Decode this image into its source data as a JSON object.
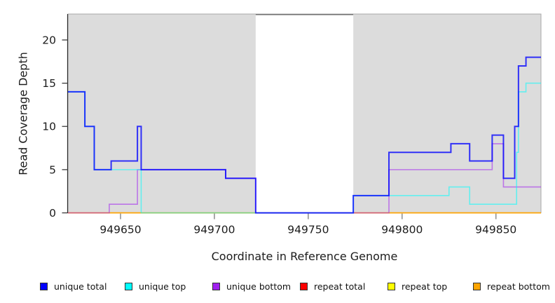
{
  "chart_data": {
    "type": "line",
    "subtype": "step-coverage",
    "title": "",
    "xlabel": "Coordinate in Reference Genome",
    "ylabel": "Read Coverage Depth",
    "x_range": [
      949622,
      949874
    ],
    "y_range": [
      0,
      23
    ],
    "x_ticks": [
      949650,
      949700,
      949750,
      949800,
      949850
    ],
    "y_ticks": [
      0,
      5,
      10,
      15,
      20
    ],
    "grid": "off",
    "plot_background": "#dcdcdc",
    "plot_border_color": "#a9a9a9",
    "axis_line_color": "#2b2b2b",
    "tick_color_x": "#8c8c8c",
    "tick_color_y": "#3c3c3c",
    "mask_region": {
      "x0": 949722,
      "x1": 949774,
      "fill": "#ffffff",
      "top_border": "#6f6f6f"
    },
    "series": [
      {
        "name": "repeat total",
        "color": "#FF0000",
        "opacity": 1,
        "width": 1.2,
        "points": [
          [
            949622,
            0
          ],
          [
            949874,
            0
          ]
        ]
      },
      {
        "name": "repeat top",
        "color": "#FFFF00",
        "opacity": 1,
        "width": 1.2,
        "points": [
          [
            949622,
            0
          ],
          [
            949874,
            0
          ]
        ]
      },
      {
        "name": "repeat bottom",
        "color": "#FFA500",
        "opacity": 1,
        "width": 1.6,
        "points": [
          [
            949622,
            0
          ],
          [
            949874,
            0
          ]
        ]
      },
      {
        "name": "unique bottom",
        "color": "#A020F0",
        "opacity": 0.55,
        "width": 1.6,
        "points": [
          [
            949622,
            0
          ],
          [
            949644,
            1
          ],
          [
            949659,
            5
          ],
          [
            949706,
            4
          ],
          [
            949722,
            0
          ],
          [
            949793,
            5
          ],
          [
            949848,
            8
          ],
          [
            949854,
            3
          ],
          [
            949874,
            3
          ]
        ]
      },
      {
        "name": "unique top",
        "color": "#00FFFF",
        "opacity": 0.55,
        "width": 1.6,
        "points": [
          [
            949622,
            14
          ],
          [
            949631,
            10
          ],
          [
            949636,
            5
          ],
          [
            949661,
            0
          ],
          [
            949774,
            2
          ],
          [
            949825,
            3
          ],
          [
            949836,
            1
          ],
          [
            949861,
            7
          ],
          [
            949862,
            14
          ],
          [
            949866,
            15
          ],
          [
            949874,
            15
          ]
        ]
      },
      {
        "name": "unique total",
        "color": "#0000FF",
        "opacity": 0.78,
        "width": 2,
        "points": [
          [
            949622,
            14
          ],
          [
            949631,
            10
          ],
          [
            949636,
            5
          ],
          [
            949645,
            6
          ],
          [
            949659,
            10
          ],
          [
            949661,
            5
          ],
          [
            949706,
            4
          ],
          [
            949722,
            0
          ],
          [
            949774,
            2
          ],
          [
            949793,
            7
          ],
          [
            949826,
            8
          ],
          [
            949836,
            6
          ],
          [
            949848,
            9
          ],
          [
            949854,
            4
          ],
          [
            949860,
            10
          ],
          [
            949862,
            17
          ],
          [
            949866,
            18
          ],
          [
            949874,
            18
          ]
        ]
      }
    ],
    "legend_position": "bottom",
    "legend": [
      {
        "label": "unique total",
        "color": "#0000FF"
      },
      {
        "label": "unique top",
        "color": "#00FFFF"
      },
      {
        "label": "unique bottom",
        "color": "#A020F0"
      },
      {
        "label": "repeat total",
        "color": "#FF0000"
      },
      {
        "label": "repeat top",
        "color": "#FFFF00"
      },
      {
        "label": "repeat bottom",
        "color": "#FFA500"
      }
    ]
  }
}
